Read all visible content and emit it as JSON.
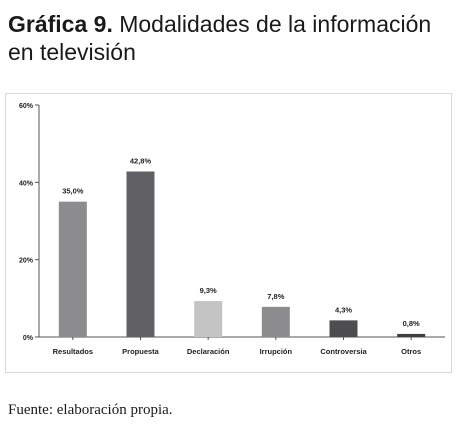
{
  "title": {
    "number": "Gráfica 9.",
    "text": " Modalidades de la información en televisión"
  },
  "source": "Fuente: elaboración propia.",
  "chart_data": {
    "type": "bar",
    "categories": [
      "Resultados",
      "Propuesta",
      "Declaración",
      "Irrupción",
      "Controversia",
      "Otros"
    ],
    "values": [
      35.0,
      42.8,
      9.3,
      7.8,
      4.3,
      0.8
    ],
    "data_labels": [
      "35,0%",
      "42,8%",
      "9,3%",
      "7,8%",
      "4,3%",
      "0,8%"
    ],
    "bar_colors": [
      "#8c8c8f",
      "#606065",
      "#c4c4c6",
      "#8c8c8f",
      "#4d4d50",
      "#404043"
    ],
    "ylim": [
      0,
      60
    ],
    "yticks": [
      0,
      20,
      40,
      60
    ],
    "ytick_labels": [
      "0%",
      "20%",
      "40%",
      "60%"
    ],
    "grid": false,
    "legend": "none",
    "title": "",
    "xlabel": "",
    "ylabel": ""
  }
}
